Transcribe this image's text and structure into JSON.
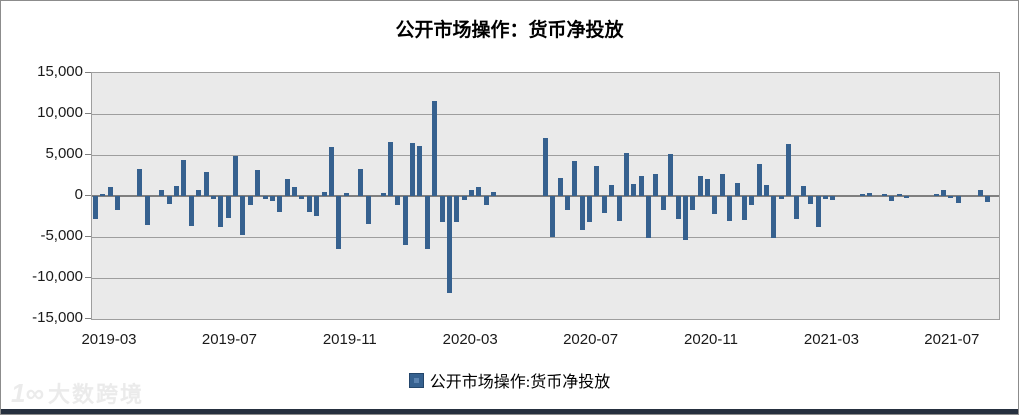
{
  "title": "公开市场操作：货币净投放",
  "legend": {
    "label": "公开市场操作:货币净投放",
    "swatch_color": "#36618f"
  },
  "watermark": {
    "logo": "1∞",
    "text": "大数跨境"
  },
  "colors": {
    "bar": "#36618f",
    "plot_background": "#eaeaea",
    "gridline": "#9e9e9e",
    "zero_line": "#7f7f7f",
    "chart_border": "#8c8c8c",
    "bottom_strip": "#26303f"
  },
  "chart_data": {
    "type": "bar",
    "title": "公开市场操作：货币净投放",
    "legend_entries": [
      "公开市场操作:货币净投放"
    ],
    "legend_position": "bottom",
    "grid": true,
    "ylim": [
      -15000,
      15000
    ],
    "y_gridline_step": 5000,
    "y_tick_labels": [
      "15,000",
      "10,000",
      "5,000",
      "0",
      "-5,000",
      "-10,000",
      "-15,000"
    ],
    "x_tick_labels": [
      "2019-03",
      "2019-07",
      "2019-11",
      "2020-03",
      "2020-07",
      "2020-11",
      "2021-03",
      "2021-07"
    ],
    "x_frequency": "weekly",
    "series": [
      {
        "name": "公开市场操作:货币净投放",
        "values": [
          -2750,
          300,
          1150,
          -1750,
          0,
          0,
          3300,
          -3500,
          0,
          700,
          -950,
          1250,
          4450,
          -3700,
          750,
          2900,
          -350,
          -3800,
          -2650,
          4850,
          -4750,
          -1100,
          3200,
          -350,
          -550,
          -2000,
          2050,
          1150,
          -400,
          -2000,
          -2450,
          450,
          6000,
          -6450,
          350,
          0,
          3350,
          -3400,
          0,
          400,
          6600,
          -1100,
          -6000,
          6450,
          6100,
          -6450,
          11550,
          -3200,
          -11800,
          -3200,
          -500,
          700,
          1050,
          -1100,
          500,
          0,
          0,
          0,
          0,
          0,
          0,
          7100,
          -4950,
          2250,
          -1650,
          4250,
          -4200,
          -3150,
          3700,
          -2050,
          1350,
          -3050,
          5250,
          1500,
          2400,
          -5150,
          2700,
          -1650,
          5100,
          -2750,
          -5350,
          -1650,
          2450,
          2100,
          -2150,
          2700,
          -3050,
          1550,
          -2900,
          -1100,
          3950,
          1300,
          -5100,
          -400,
          6300,
          -2750,
          1250,
          -1000,
          -3800,
          -350,
          -500,
          0,
          0,
          0,
          300,
          350,
          0,
          250,
          -550,
          250,
          -300,
          0,
          0,
          0,
          250,
          700,
          -300,
          -900,
          0,
          0,
          700,
          -700,
          0
        ]
      }
    ]
  }
}
